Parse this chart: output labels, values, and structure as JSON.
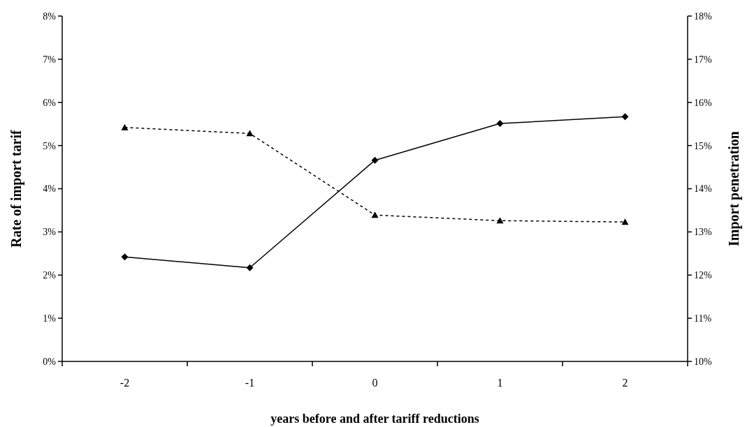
{
  "chart_data": {
    "type": "line",
    "xlabel": "years before and after tariff reductions",
    "ylabel": "Rate of import tarif",
    "y2label": "Import penetration",
    "categories": [
      "-2",
      "-1",
      "0",
      "1",
      "2"
    ],
    "series": [
      {
        "color": "#000000",
        "values": [
          5.42,
          5.28,
          3.39,
          3.26,
          3.23
        ],
        "marker": "triangle",
        "line_style": "dashed"
      },
      {
        "color": "#000000",
        "values": [
          12.42,
          12.17,
          14.66,
          15.51,
          15.67
        ],
        "marker": "diamond",
        "line_style": "solid",
        "axis": "y2"
      }
    ],
    "ylim": [
      0,
      8
    ],
    "yticks": [
      {
        "value": 0,
        "label": "0%"
      },
      {
        "value": 1,
        "label": "1%"
      },
      {
        "value": 2,
        "label": "2%"
      },
      {
        "value": 3,
        "label": "3%"
      },
      {
        "value": 4,
        "label": "4%"
      },
      {
        "value": 5,
        "label": "5%"
      },
      {
        "value": 6,
        "label": "6%"
      },
      {
        "value": 7,
        "label": "7%"
      },
      {
        "value": 8,
        "label": "8%"
      }
    ],
    "y2lim": [
      10,
      18
    ],
    "y2ticks": [
      {
        "value": 10,
        "label": "10%"
      },
      {
        "value": 11,
        "label": "11%"
      },
      {
        "value": 12,
        "label": "12%"
      },
      {
        "value": 13,
        "label": "13%"
      },
      {
        "value": 14,
        "label": "14%"
      },
      {
        "value": 15,
        "label": "15%"
      },
      {
        "value": 16,
        "label": "16%"
      },
      {
        "value": 17,
        "label": "17%"
      },
      {
        "value": 18,
        "label": "18%"
      }
    ],
    "grid": false
  }
}
